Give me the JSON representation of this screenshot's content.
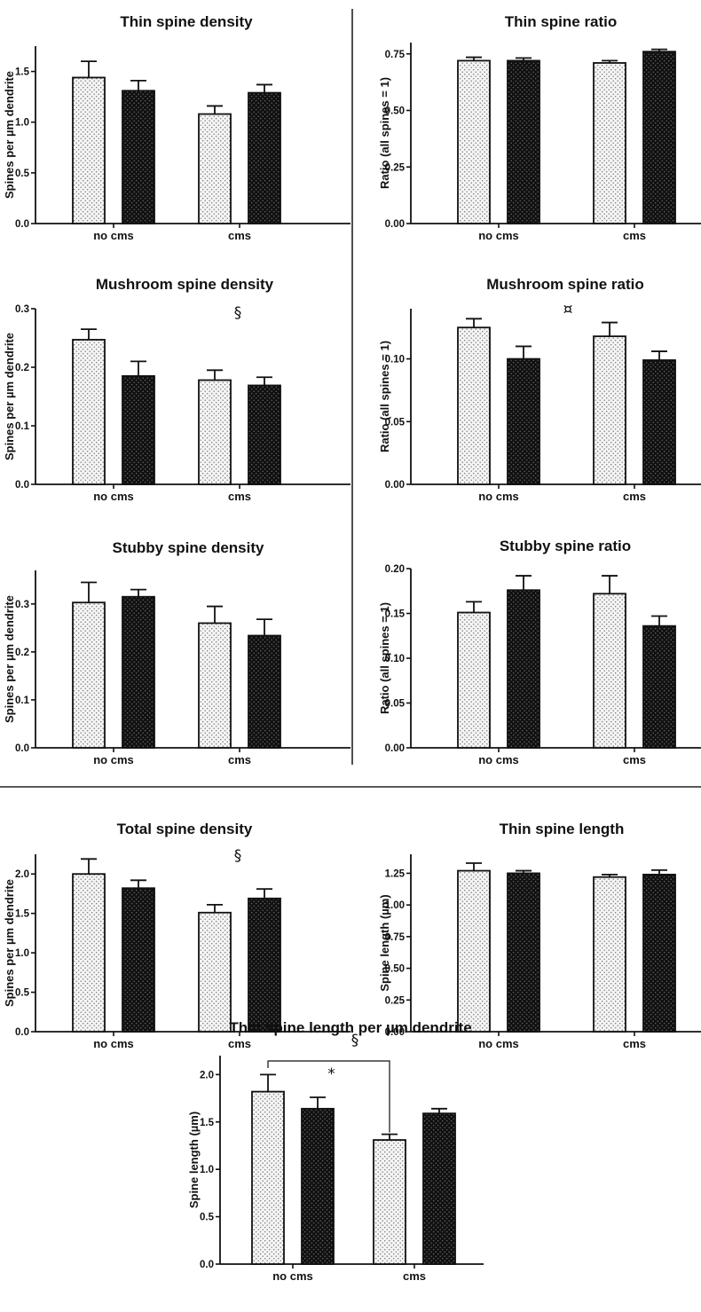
{
  "colors": {
    "control_fill": "#f4f4f4",
    "treated_fill": "#111111",
    "axis": "#111111"
  },
  "chart_data": [
    {
      "type": "bar",
      "title": "Thin spine density",
      "ylabel": "Spines per  µm dendrite",
      "categories": [
        "no cms",
        "cms"
      ],
      "ylim": [
        0,
        1.75
      ],
      "yticks": [
        0.0,
        0.5,
        1.0,
        1.5
      ],
      "tick_labels": [
        "0.0",
        "0.5",
        "1.0",
        "1.5"
      ],
      "series": [
        {
          "values": [
            1.44,
            1.08
          ],
          "errors": [
            0.16,
            0.08
          ]
        },
        {
          "values": [
            1.31,
            1.29
          ],
          "errors": [
            0.1,
            0.08
          ]
        }
      ],
      "annotation": ""
    },
    {
      "type": "bar",
      "title": "Thin spine ratio",
      "ylabel": "Ratio (all spines = 1)",
      "categories": [
        "no cms",
        "cms"
      ],
      "ylim": [
        0,
        0.8
      ],
      "yticks": [
        0.0,
        0.25,
        0.5,
        0.75
      ],
      "tick_labels": [
        "0.00",
        "0.25",
        "0.50",
        "0.75"
      ],
      "series": [
        {
          "values": [
            0.72,
            0.71
          ],
          "errors": [
            0.015,
            0.01
          ]
        },
        {
          "values": [
            0.72,
            0.76
          ],
          "errors": [
            0.012,
            0.01
          ]
        }
      ],
      "annotation": ""
    },
    {
      "type": "bar",
      "title": "Mushroom spine density",
      "ylabel": "Spines per  µm dendrite",
      "categories": [
        "no cms",
        "cms"
      ],
      "ylim": [
        0,
        0.3
      ],
      "yticks": [
        0.0,
        0.1,
        0.2,
        0.3
      ],
      "tick_labels": [
        "0.0",
        "0.1",
        "0.2",
        "0.3"
      ],
      "series": [
        {
          "values": [
            0.247,
            0.178
          ],
          "errors": [
            0.018,
            0.017
          ]
        },
        {
          "values": [
            0.185,
            0.169
          ],
          "errors": [
            0.025,
            0.014
          ]
        }
      ],
      "annotation": "§"
    },
    {
      "type": "bar",
      "title": "Mushroom spine ratio",
      "ylabel": "Ratio (all spines = 1)",
      "categories": [
        "no cms",
        "cms"
      ],
      "ylim": [
        0,
        0.14
      ],
      "yticks": [
        0.0,
        0.05,
        0.1
      ],
      "tick_labels": [
        "0.00",
        "0.05",
        "0.10"
      ],
      "series": [
        {
          "values": [
            0.125,
            0.118
          ],
          "errors": [
            0.007,
            0.011
          ]
        },
        {
          "values": [
            0.1,
            0.099
          ],
          "errors": [
            0.01,
            0.007
          ]
        }
      ],
      "annotation": "¤"
    },
    {
      "type": "bar",
      "title": "Stubby spine density",
      "ylabel": "Spines per  µm dendrite",
      "categories": [
        "no cms",
        "cms"
      ],
      "ylim": [
        0,
        0.37
      ],
      "yticks": [
        0.0,
        0.1,
        0.2,
        0.3
      ],
      "tick_labels": [
        "0.0",
        "0.1",
        "0.2",
        "0.3"
      ],
      "series": [
        {
          "values": [
            0.303,
            0.26
          ],
          "errors": [
            0.042,
            0.035
          ]
        },
        {
          "values": [
            0.315,
            0.234
          ],
          "errors": [
            0.015,
            0.034
          ]
        }
      ],
      "annotation": ""
    },
    {
      "type": "bar",
      "title": "Stubby spine ratio",
      "ylabel": "Ratio (all spines = 1)",
      "categories": [
        "no cms",
        "cms"
      ],
      "ylim": [
        0,
        0.2
      ],
      "yticks": [
        0.0,
        0.05,
        0.1,
        0.15,
        0.2
      ],
      "tick_labels": [
        "0.00",
        "0.05",
        "0.10",
        "0.15",
        "0.20"
      ],
      "series": [
        {
          "values": [
            0.151,
            0.172
          ],
          "errors": [
            0.012,
            0.02
          ]
        },
        {
          "values": [
            0.176,
            0.136
          ],
          "errors": [
            0.016,
            0.011
          ]
        }
      ],
      "annotation": ""
    },
    {
      "type": "bar",
      "title": "Total spine density",
      "ylabel": "Spines per  µm dendrite",
      "categories": [
        "no cms",
        "cms"
      ],
      "ylim": [
        0,
        2.25
      ],
      "yticks": [
        0.0,
        0.5,
        1.0,
        1.5,
        2.0
      ],
      "tick_labels": [
        "0.0",
        "0.5",
        "1.0",
        "1.5",
        "2.0"
      ],
      "series": [
        {
          "values": [
            2.0,
            1.51
          ],
          "errors": [
            0.19,
            0.1
          ]
        },
        {
          "values": [
            1.82,
            1.69
          ],
          "errors": [
            0.1,
            0.12
          ]
        }
      ],
      "annotation": "§"
    },
    {
      "type": "bar",
      "title": "Thin spine length",
      "ylabel": "Spine length (µm)",
      "categories": [
        "no cms",
        "cms"
      ],
      "ylim": [
        0,
        1.4
      ],
      "yticks": [
        0.0,
        0.25,
        0.5,
        0.75,
        1.0,
        1.25
      ],
      "tick_labels": [
        "0.00",
        "0.25",
        "0.50",
        "0.75",
        "1.00",
        "1.25"
      ],
      "series": [
        {
          "values": [
            1.27,
            1.22
          ],
          "errors": [
            0.06,
            0.02
          ]
        },
        {
          "values": [
            1.25,
            1.24
          ],
          "errors": [
            0.02,
            0.035
          ]
        }
      ],
      "annotation": ""
    },
    {
      "type": "bar",
      "title": "Thin spine length per µm dendrite",
      "ylabel": "Spine length (µm)",
      "categories": [
        "no cms",
        "cms"
      ],
      "ylim": [
        0,
        2.2
      ],
      "yticks": [
        0.0,
        0.5,
        1.0,
        1.5,
        2.0
      ],
      "tick_labels": [
        "0.0",
        "0.5",
        "1.0",
        "1.5",
        "2.0"
      ],
      "series": [
        {
          "values": [
            1.82,
            1.31
          ],
          "errors": [
            0.18,
            0.06
          ]
        },
        {
          "values": [
            1.64,
            1.59
          ],
          "errors": [
            0.12,
            0.05
          ]
        }
      ],
      "annotation": "§",
      "significance": {
        "label": "*",
        "between": "no cms vs cms"
      }
    }
  ]
}
